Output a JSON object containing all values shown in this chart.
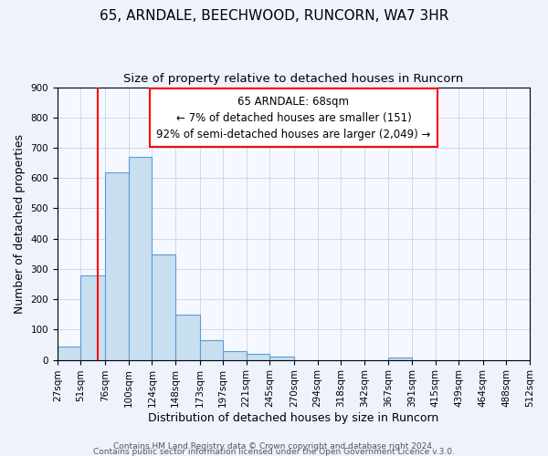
{
  "title": "65, ARNDALE, BEECHWOOD, RUNCORN, WA7 3HR",
  "subtitle": "Size of property relative to detached houses in Runcorn",
  "xlabel": "Distribution of detached houses by size in Runcorn",
  "ylabel": "Number of detached properties",
  "bin_edges": [
    27,
    51,
    76,
    100,
    124,
    148,
    173,
    197,
    221,
    245,
    270,
    294,
    318,
    342,
    367,
    391,
    415,
    439,
    464,
    488,
    512
  ],
  "bar_heights": [
    45,
    280,
    620,
    670,
    348,
    148,
    65,
    30,
    20,
    10,
    0,
    0,
    0,
    0,
    8,
    0,
    0,
    0,
    0,
    0
  ],
  "bar_color": "#c8dff0",
  "bar_edge_color": "#5b9bd5",
  "vline_x": 68,
  "vline_color": "red",
  "annotation_line1": "65 ARNDALE: 68sqm",
  "annotation_line2": "← 7% of detached houses are smaller (151)",
  "annotation_line3": "92% of semi-detached houses are larger (2,049) →",
  "ylim": [
    0,
    900
  ],
  "yticks": [
    0,
    100,
    200,
    300,
    400,
    500,
    600,
    700,
    800,
    900
  ],
  "footer1": "Contains HM Land Registry data © Crown copyright and database right 2024.",
  "footer2": "Contains public sector information licensed under the Open Government Licence v.3.0.",
  "title_fontsize": 11,
  "subtitle_fontsize": 9.5,
  "axis_label_fontsize": 9,
  "tick_fontsize": 7.5,
  "annotation_fontsize": 8.5,
  "footer_fontsize": 6.5,
  "background_color": "#eef2fb",
  "plot_bg_color": "#f5f8ff",
  "grid_color": "#c8d4e8"
}
